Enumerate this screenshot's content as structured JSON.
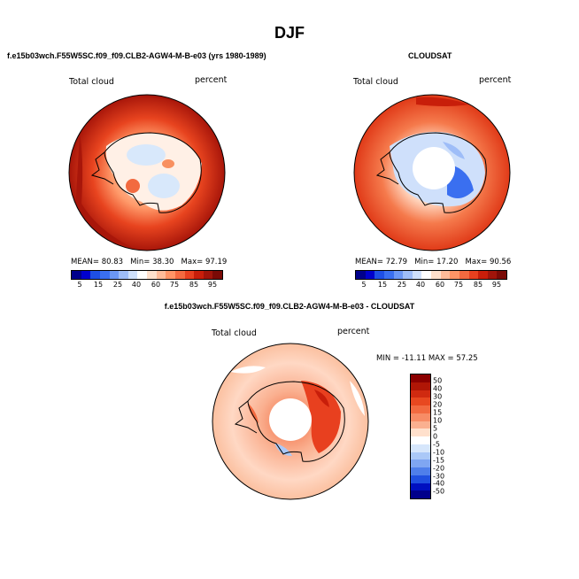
{
  "title": "DJF",
  "panels": [
    {
      "header": "f.e15b03wch.F55W5SC.f09_f09.CLB2-AGW4-M-B-e03 (yrs 1980-1989)",
      "variable": "Total cloud",
      "units": "percent",
      "stats": {
        "mean_label": "MEAN=",
        "mean": "80.83",
        "min_label": "Min=",
        "min": "38.30",
        "max_label": "Max=",
        "max": "97.19"
      }
    },
    {
      "header": "CLOUDSAT",
      "variable": "Total cloud",
      "units": "percent",
      "stats": {
        "mean_label": "MEAN=",
        "mean": "72.79",
        "min_label": "Min=",
        "min": "17.20",
        "max_label": "Max=",
        "max": "90.56"
      }
    },
    {
      "header": "f.e15b03wch.F55W5SC.f09_f09.CLB2-AGW4-M-B-e03 - CLOUDSAT",
      "variable": "Total cloud",
      "units": "percent",
      "minmax": "MIN = -11.11  MAX =  57.25"
    }
  ],
  "colorbar_abs": {
    "labels": [
      "5",
      "15",
      "25",
      "40",
      "60",
      "75",
      "85",
      "95"
    ],
    "colors": [
      "#00008b",
      "#0000cd",
      "#1e4fe6",
      "#3a6ff0",
      "#6b97f5",
      "#9ebdf8",
      "#cfe0fb",
      "#ffffff",
      "#ffe0cc",
      "#ffbb99",
      "#ff9466",
      "#f46a40",
      "#e8401f",
      "#c81e0a",
      "#a0140a",
      "#7a0a06"
    ]
  },
  "colorbar_diff": {
    "labels": [
      "50",
      "40",
      "30",
      "20",
      "15",
      "10",
      "5",
      "0",
      "-5",
      "-10",
      "-15",
      "-20",
      "-30",
      "-40",
      "-50"
    ],
    "colors": [
      "#8b0000",
      "#b01606",
      "#d02a10",
      "#e84820",
      "#f26a40",
      "#f78c66",
      "#fab090",
      "#ffe0cc",
      "#ffffff",
      "#d6e6fb",
      "#aac8f7",
      "#7fa6f2",
      "#4f7fea",
      "#2050e0",
      "#0010c0",
      "#00008b"
    ]
  }
}
